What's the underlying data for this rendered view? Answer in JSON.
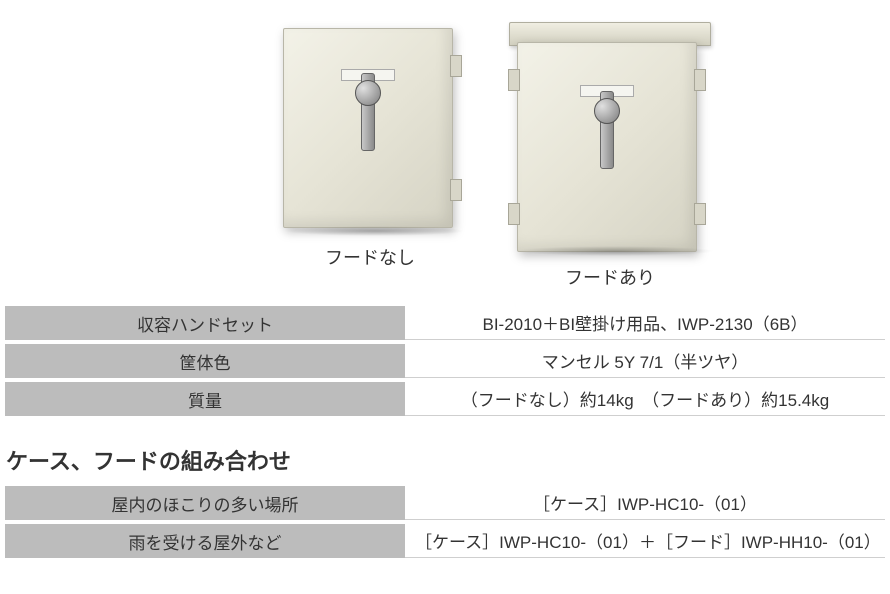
{
  "images": {
    "left_caption": "フードなし",
    "right_caption": "フードあり"
  },
  "spec_table": {
    "rows": [
      {
        "label": "収容ハンドセット",
        "value": "BI-2010＋BI壁掛け用品、IWP-2130（6B）"
      },
      {
        "label": "筐体色",
        "value": "マンセル 5Y 7/1（半ツヤ）"
      },
      {
        "label": "質量",
        "value": "（フードなし）約14kg　（フードあり）約15.4kg"
      }
    ]
  },
  "combo": {
    "heading": "ケース、フードの組み合わせ",
    "rows": [
      {
        "label": "屋内のほこりの多い場所",
        "value": "［ケース］IWP-HC10-（01）"
      },
      {
        "label": "雨を受ける屋外など",
        "value": "［ケース］IWP-HC10-（01）＋［フード］IWP-HH10-（01）"
      }
    ]
  },
  "colors": {
    "label_bg": "#bcbcbc",
    "row_border": "#cfcfcf",
    "text": "#333333",
    "enclosure_light": "#f3f2e8",
    "enclosure_dark": "#d5d3c4"
  }
}
